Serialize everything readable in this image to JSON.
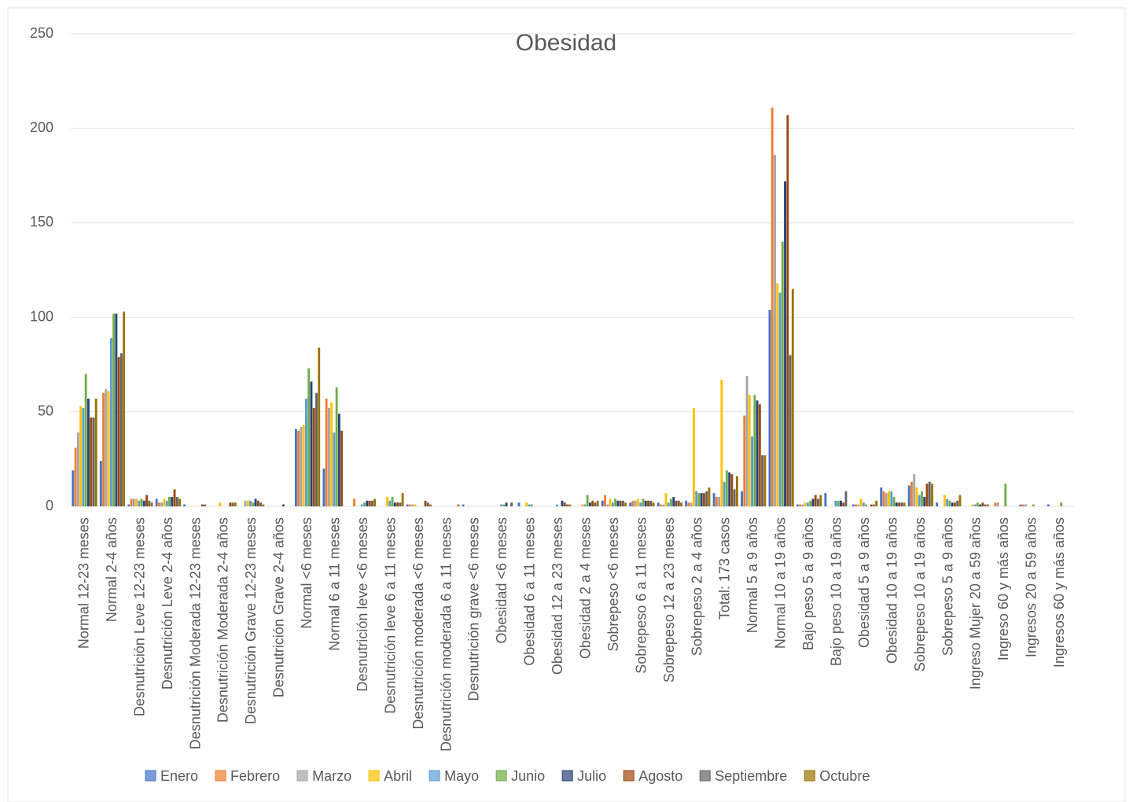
{
  "chart_data": {
    "type": "bar",
    "title": "Obesidad",
    "categories": [
      "Normal 12-23 meses",
      "Normal 2-4 años",
      "Desnutrición Leve 12-23 meses",
      "Desnutrición Leve 2-4 años",
      "Desnutrición Moderada 12-23 meses",
      "Desnutrición Moderada 2-4 años",
      "Desnutrición Grave 12-23 meses",
      "Desnutrición Grave 2-4 años",
      "Normal <6 meses",
      "Normal 6 a 11 meses",
      "Desnutrición leve <6 meses",
      "Desnutrición leve 6 a 11 meses",
      "Desnutrición moderada <6 meses",
      "Desnutrición moderada 6 a 11 meses",
      "Desnutrición grave <6 meses",
      "Obesidad <6 meses",
      "Obesidad 6 a 11 meses",
      "Obesidad 12 a 23 meses",
      "Obesidad 2 a 4 meses",
      "Sobrepeso <6 meses",
      "Sobrepeso 6 a 11 meses",
      "Sobrepeso 12 a 23 meses",
      "Sobrepeso 2 a 4 años",
      "Total: 173 casos",
      "Normal 5 a 9 años",
      "Normal 10 a 19 años",
      "Bajo peso 5 a 9 años",
      "Bajo peso 10 a 19 años",
      "Obesidad 5 a 9 años",
      "Obesidad 10 a 19 años",
      "Sobrepeso 10 a 19 años",
      "Sobrepeso 5 a 9 años",
      "Ingreso Mujer 20 a 59 años",
      "Ingreso 60 y más años",
      "Ingresos 20 a 59 años",
      "Ingresos 60 y más años"
    ],
    "series": [
      {
        "name": "Enero",
        "color": "#4472c4",
        "values": [
          19,
          24,
          1,
          4,
          1,
          0,
          0,
          0,
          41,
          20,
          0,
          0,
          1,
          0,
          1,
          0,
          2,
          0,
          0,
          3,
          2,
          2,
          3,
          7,
          8,
          104,
          1,
          7,
          1,
          10,
          11,
          2,
          0,
          0,
          1,
          1
        ]
      },
      {
        "name": "Febrero",
        "color": "#ed7d31",
        "values": [
          31,
          60,
          4,
          2,
          0,
          0,
          0,
          0,
          40,
          57,
          4,
          0,
          1,
          0,
          0,
          0,
          0,
          0,
          0,
          6,
          3,
          1,
          2,
          5,
          48,
          211,
          1,
          0,
          1,
          8,
          13,
          0,
          0,
          2,
          1,
          0
        ]
      },
      {
        "name": "Marzo",
        "color": "#a5a5a5",
        "values": [
          39,
          62,
          4,
          2,
          0,
          0,
          3,
          0,
          42,
          52,
          0,
          0,
          1,
          0,
          0,
          0,
          0,
          0,
          0,
          1,
          3,
          1,
          2,
          5,
          69,
          186,
          1,
          0,
          1,
          7,
          17,
          0,
          0,
          2,
          1,
          0
        ]
      },
      {
        "name": "Abril",
        "color": "#ffc000",
        "values": [
          53,
          61,
          4,
          4,
          0,
          2,
          3,
          0,
          43,
          55,
          0,
          5,
          1,
          0,
          0,
          0,
          2,
          0,
          1,
          4,
          4,
          7,
          52,
          67,
          59,
          118,
          2,
          0,
          4,
          8,
          10,
          6,
          1,
          0,
          0,
          0
        ]
      },
      {
        "name": "Mayo",
        "color": "#5b9bd5",
        "values": [
          52,
          89,
          3,
          3,
          0,
          0,
          3,
          0,
          57,
          39,
          1,
          3,
          0,
          0,
          0,
          1,
          1,
          1,
          1,
          2,
          2,
          2,
          8,
          13,
          37,
          113,
          2,
          3,
          2,
          8,
          6,
          4,
          1,
          0,
          0,
          0
        ]
      },
      {
        "name": "Junio",
        "color": "#70ad47",
        "values": [
          70,
          102,
          4,
          5,
          0,
          0,
          2,
          0,
          73,
          63,
          2,
          5,
          0,
          0,
          0,
          1,
          1,
          0,
          6,
          4,
          4,
          4,
          7,
          19,
          59,
          140,
          3,
          3,
          1,
          5,
          8,
          3,
          2,
          12,
          1,
          2
        ]
      },
      {
        "name": "Julio",
        "color": "#264478",
        "values": [
          57,
          102,
          3,
          5,
          0,
          0,
          4,
          1,
          66,
          49,
          3,
          2,
          0,
          0,
          0,
          2,
          0,
          3,
          2,
          3,
          3,
          5,
          7,
          18,
          56,
          172,
          4,
          3,
          0,
          2,
          5,
          2,
          1,
          0,
          0,
          0
        ]
      },
      {
        "name": "Agosto",
        "color": "#9e480e",
        "values": [
          47,
          79,
          6,
          9,
          1,
          2,
          3,
          0,
          52,
          40,
          3,
          2,
          3,
          0,
          0,
          0,
          0,
          2,
          3,
          3,
          3,
          3,
          7,
          17,
          54,
          207,
          6,
          2,
          1,
          2,
          12,
          2,
          2,
          0,
          0,
          0
        ]
      },
      {
        "name": "Septiembre",
        "color": "#636363",
        "values": [
          47,
          81,
          3,
          5,
          1,
          2,
          2,
          0,
          60,
          0,
          3,
          2,
          2,
          0,
          0,
          2,
          0,
          1,
          2,
          3,
          3,
          3,
          8,
          9,
          27,
          80,
          4,
          8,
          1,
          2,
          13,
          3,
          1,
          0,
          0,
          0
        ]
      },
      {
        "name": "Octubre",
        "color": "#997300",
        "values": [
          57,
          103,
          2,
          4,
          0,
          2,
          1,
          0,
          84,
          0,
          4,
          7,
          1,
          1,
          0,
          0,
          0,
          1,
          3,
          2,
          2,
          2,
          10,
          16,
          27,
          115,
          6,
          0,
          3,
          2,
          12,
          6,
          1,
          0,
          0,
          0
        ]
      }
    ],
    "ylim": [
      0,
      250
    ],
    "yticks": [
      0,
      50,
      100,
      150,
      200,
      250
    ],
    "grid": true,
    "legend": "bottom"
  }
}
